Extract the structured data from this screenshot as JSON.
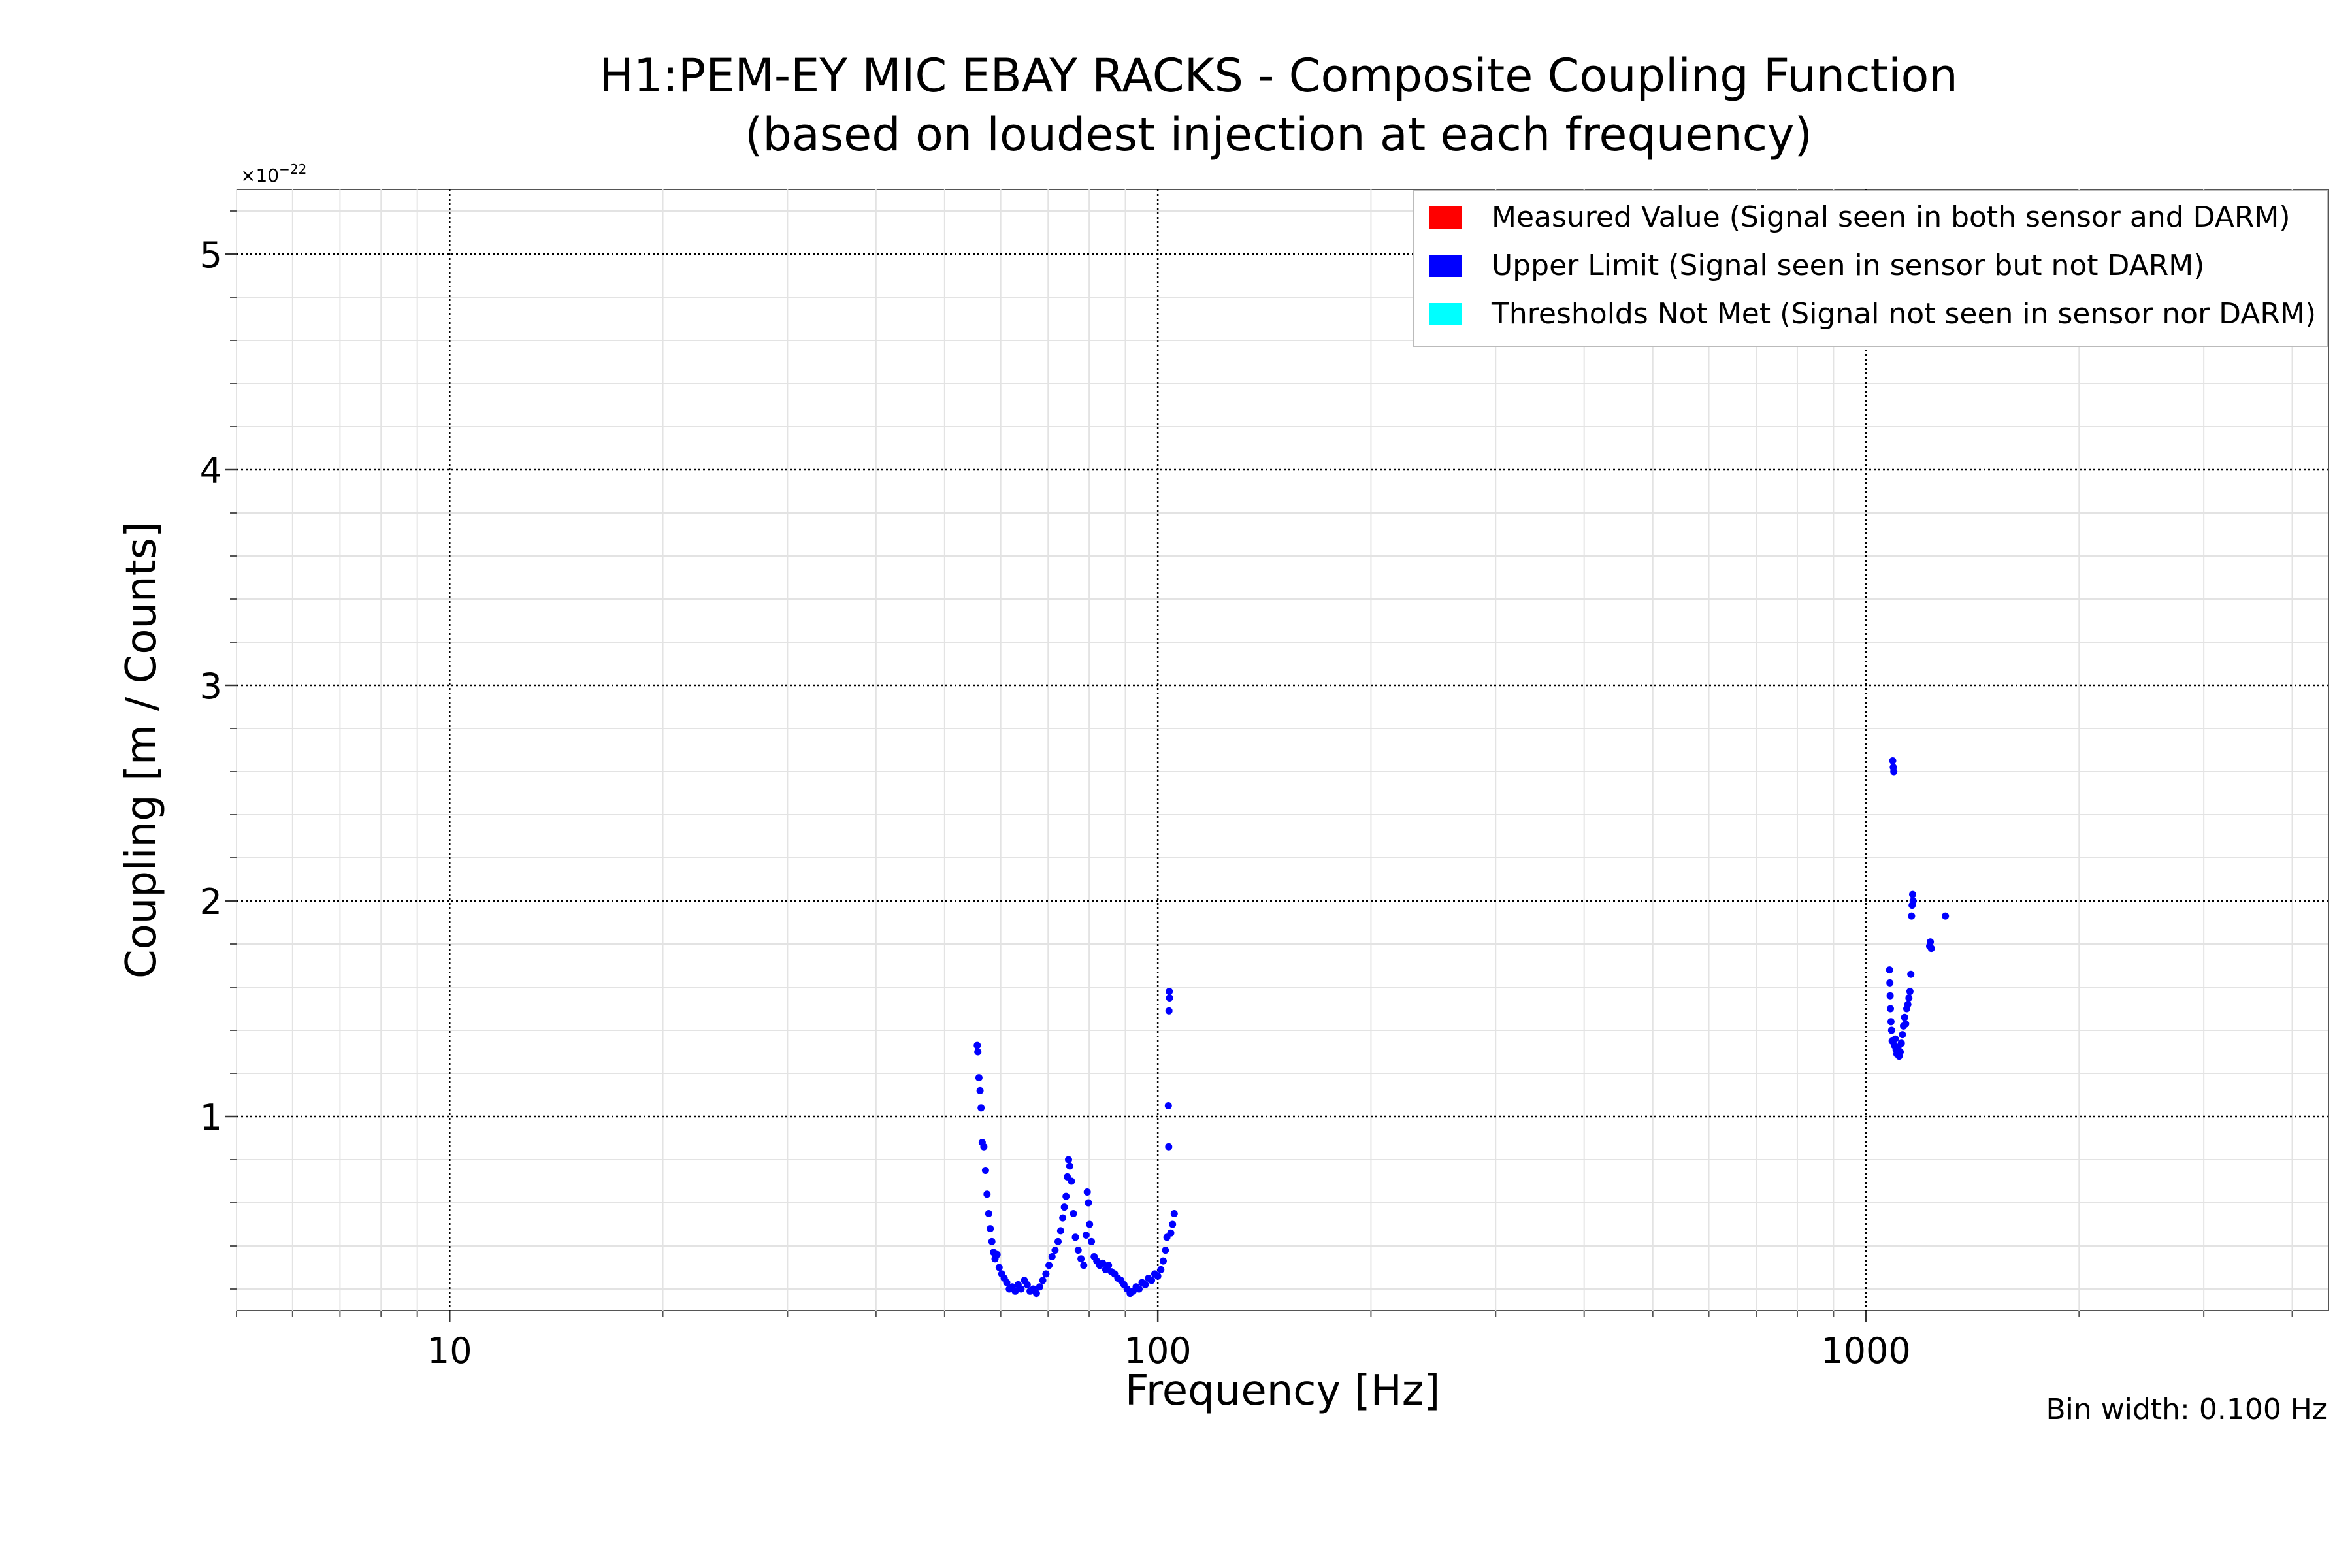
{
  "chart_data": {
    "type": "scatter",
    "title": "H1:PEM-EY MIC EBAY RACKS - Composite Coupling Function",
    "subtitle": "(based on loudest injection at each frequency)",
    "xlabel": "Frequency [Hz]",
    "ylabel": "Coupling [m / Counts]",
    "xscale": "log",
    "xlim": [
      5,
      4500
    ],
    "ylim": [
      0.1,
      5.3
    ],
    "y_multiplier": "×10",
    "y_multiplier_exp": "−22",
    "xticks": [
      {
        "value": 10,
        "label": "10"
      },
      {
        "value": 100,
        "label": "100"
      },
      {
        "value": 1000,
        "label": "1000"
      }
    ],
    "yticks": [
      {
        "value": 1,
        "label": "1"
      },
      {
        "value": 2,
        "label": "2"
      },
      {
        "value": 3,
        "label": "3"
      },
      {
        "value": 4,
        "label": "4"
      },
      {
        "value": 5,
        "label": "5"
      }
    ],
    "grid": true,
    "legend_position": "top-right",
    "annotation": "Bin width: 0.100 Hz",
    "series": [
      {
        "name": "Measured Value (Signal seen in both sensor and DARM)",
        "color": "#ff0000",
        "points": []
      },
      {
        "name": "Upper Limit (Signal seen in sensor but not DARM)",
        "color": "#0000ff",
        "points": [
          [
            55.6,
            1.33
          ],
          [
            55.7,
            1.3
          ],
          [
            55.9,
            1.18
          ],
          [
            56.1,
            1.12
          ],
          [
            56.3,
            1.04
          ],
          [
            56.5,
            0.88
          ],
          [
            56.8,
            0.86
          ],
          [
            57.1,
            0.75
          ],
          [
            57.4,
            0.64
          ],
          [
            57.7,
            0.55
          ],
          [
            58.0,
            0.48
          ],
          [
            58.3,
            0.42
          ],
          [
            58.6,
            0.37
          ],
          [
            58.9,
            0.34
          ],
          [
            59.3,
            0.36
          ],
          [
            59.7,
            0.3
          ],
          [
            60.2,
            0.27
          ],
          [
            60.7,
            0.25
          ],
          [
            61.2,
            0.23
          ],
          [
            61.7,
            0.2
          ],
          [
            62.3,
            0.21
          ],
          [
            62.9,
            0.19
          ],
          [
            63.5,
            0.22
          ],
          [
            64.1,
            0.2
          ],
          [
            64.8,
            0.24
          ],
          [
            65.4,
            0.22
          ],
          [
            66.0,
            0.19
          ],
          [
            66.7,
            0.2
          ],
          [
            67.4,
            0.18
          ],
          [
            68.1,
            0.21
          ],
          [
            68.8,
            0.24
          ],
          [
            69.5,
            0.27
          ],
          [
            70.2,
            0.31
          ],
          [
            70.9,
            0.35
          ],
          [
            71.6,
            0.38
          ],
          [
            72.3,
            0.42
          ],
          [
            72.9,
            0.47
          ],
          [
            73.4,
            0.53
          ],
          [
            73.8,
            0.58
          ],
          [
            74.2,
            0.63
          ],
          [
            74.5,
            0.72
          ],
          [
            74.8,
            0.8
          ],
          [
            75.1,
            0.77
          ],
          [
            75.5,
            0.7
          ],
          [
            76.0,
            0.55
          ],
          [
            76.5,
            0.44
          ],
          [
            77.2,
            0.38
          ],
          [
            77.9,
            0.34
          ],
          [
            78.6,
            0.31
          ],
          [
            79.2,
            0.45
          ],
          [
            79.5,
            0.65
          ],
          [
            79.8,
            0.6
          ],
          [
            80.1,
            0.5
          ],
          [
            80.6,
            0.42
          ],
          [
            81.3,
            0.35
          ],
          [
            82.0,
            0.33
          ],
          [
            82.8,
            0.31
          ],
          [
            83.6,
            0.32
          ],
          [
            84.4,
            0.29
          ],
          [
            85.2,
            0.31
          ],
          [
            86.0,
            0.28
          ],
          [
            86.9,
            0.27
          ],
          [
            87.8,
            0.25
          ],
          [
            88.7,
            0.24
          ],
          [
            89.6,
            0.22
          ],
          [
            90.5,
            0.2
          ],
          [
            91.4,
            0.18
          ],
          [
            92.3,
            0.19
          ],
          [
            93.2,
            0.21
          ],
          [
            94.1,
            0.2
          ],
          [
            95.0,
            0.23
          ],
          [
            96.0,
            0.22
          ],
          [
            97.0,
            0.25
          ],
          [
            98.0,
            0.24
          ],
          [
            99.0,
            0.27
          ],
          [
            100.0,
            0.26
          ],
          [
            101.0,
            0.29
          ],
          [
            101.8,
            0.33
          ],
          [
            102.5,
            0.38
          ],
          [
            103.0,
            0.44
          ],
          [
            103.5,
            1.05
          ],
          [
            103.6,
            0.86
          ],
          [
            103.7,
            1.49
          ],
          [
            103.8,
            1.58
          ],
          [
            103.9,
            1.55
          ],
          [
            104.3,
            0.46
          ],
          [
            104.9,
            0.5
          ],
          [
            105.5,
            0.55
          ],
          [
            1080,
            1.68
          ],
          [
            1081,
            1.62
          ],
          [
            1082,
            1.56
          ],
          [
            1083,
            1.5
          ],
          [
            1085,
            1.44
          ],
          [
            1087,
            1.4
          ],
          [
            1089,
            1.35
          ],
          [
            1091,
            2.65
          ],
          [
            1093,
            2.62
          ],
          [
            1095,
            2.6
          ],
          [
            1097,
            1.33
          ],
          [
            1100,
            1.36
          ],
          [
            1103,
            1.31
          ],
          [
            1106,
            1.29
          ],
          [
            1110,
            1.32
          ],
          [
            1114,
            1.28
          ],
          [
            1118,
            1.3
          ],
          [
            1122,
            1.34
          ],
          [
            1126,
            1.38
          ],
          [
            1130,
            1.42
          ],
          [
            1134,
            1.46
          ],
          [
            1138,
            1.43
          ],
          [
            1142,
            1.5
          ],
          [
            1146,
            1.52
          ],
          [
            1150,
            1.55
          ],
          [
            1154,
            1.58
          ],
          [
            1157,
            1.66
          ],
          [
            1160,
            1.93
          ],
          [
            1162,
            1.98
          ],
          [
            1164,
            2.03
          ],
          [
            1166,
            2.0
          ],
          [
            1230,
            1.79
          ],
          [
            1233,
            1.81
          ],
          [
            1237,
            1.78
          ],
          [
            1295,
            1.93
          ]
        ]
      },
      {
        "name": "Thresholds Not Met (Signal not seen in sensor nor DARM)",
        "color": "#00ffff",
        "points": []
      }
    ]
  }
}
